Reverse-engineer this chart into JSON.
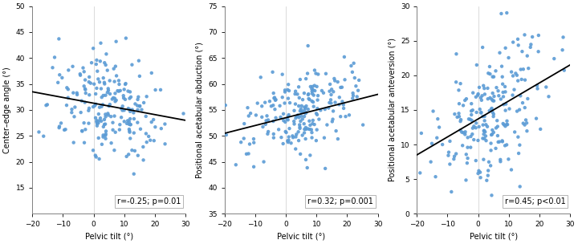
{
  "panel1": {
    "ylabel": "Center–edge angle (°)",
    "xlabel": "Pelvic tilt (°)",
    "xlim": [
      -20,
      30
    ],
    "ylim": [
      10,
      50
    ],
    "yticks": [
      15,
      20,
      25,
      30,
      35,
      40,
      45,
      50
    ],
    "xticks": [
      -20,
      -10,
      0,
      10,
      20,
      30
    ],
    "annotation": "r=-0.25; p=0.01",
    "line_x": [
      -20,
      30
    ],
    "line_y": [
      33.5,
      28.0
    ],
    "dot_color": "#5b9bd5",
    "seed": 42,
    "r_corr": -0.25,
    "y_mean": 30.5,
    "y_std": 5.5,
    "x_mean": 5.0,
    "x_std": 9.0
  },
  "panel2": {
    "ylabel": "Positional acetabular abduction (°)",
    "xlabel": "Pelvic tilt (°)",
    "xlim": [
      -20,
      30
    ],
    "ylim": [
      35,
      75
    ],
    "yticks": [
      35,
      40,
      45,
      50,
      55,
      60,
      65,
      70,
      75
    ],
    "xticks": [
      -20,
      -10,
      0,
      10,
      20,
      30
    ],
    "annotation": "r=0.32; p=0.001",
    "line_x": [
      -20,
      30
    ],
    "line_y": [
      50.5,
      58.0
    ],
    "dot_color": "#5b9bd5",
    "seed": 43,
    "r_corr": 0.32,
    "y_mean": 54.5,
    "y_std": 4.5,
    "x_mean": 5.0,
    "x_std": 9.0
  },
  "panel3": {
    "ylabel": "Positional acetabular anteversion (°)",
    "xlabel": "Pelvic tilt (°)",
    "xlim": [
      -20,
      30
    ],
    "ylim": [
      0,
      30
    ],
    "yticks": [
      0,
      5,
      10,
      15,
      20,
      25,
      30
    ],
    "xticks": [
      -20,
      -10,
      0,
      10,
      20,
      30
    ],
    "annotation": "r=0.45; p<0.01",
    "line_x": [
      -20,
      30
    ],
    "line_y": [
      8.5,
      21.5
    ],
    "dot_color": "#5b9bd5",
    "seed": 44,
    "r_corr": 0.45,
    "y_mean": 15.0,
    "y_std": 5.0,
    "x_mean": 5.0,
    "x_std": 9.0
  },
  "figsize": [
    7.2,
    3.04
  ],
  "dpi": 100,
  "n_points": 220
}
